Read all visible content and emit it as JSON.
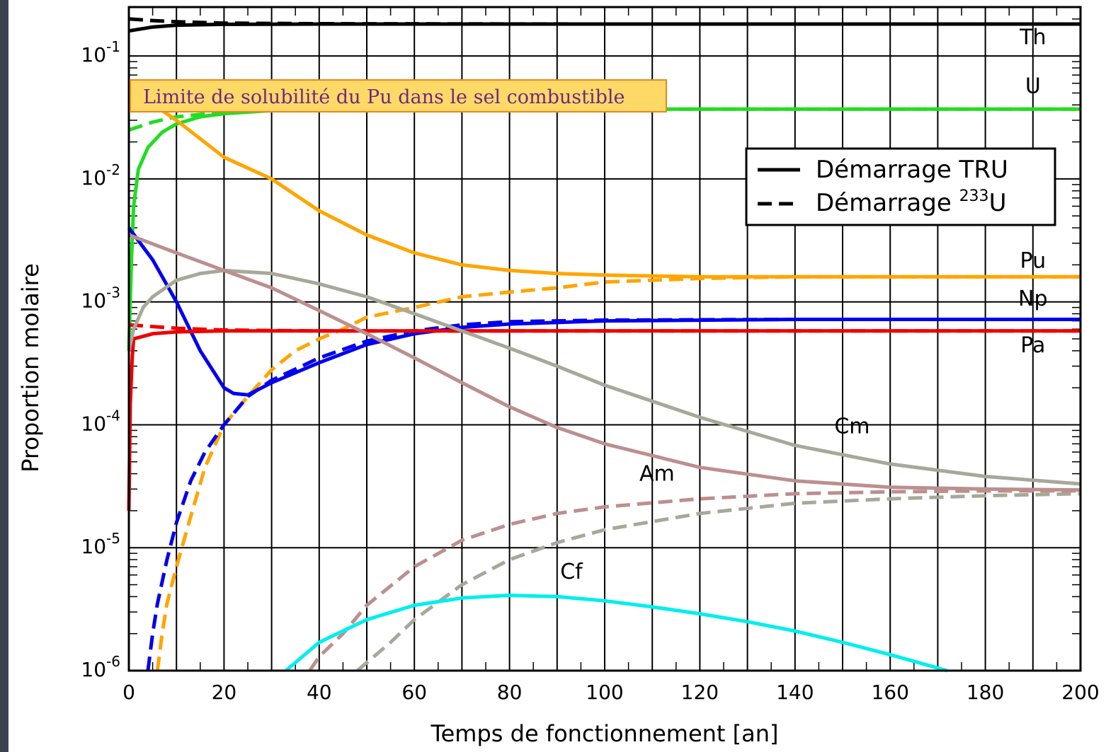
{
  "chart_data": {
    "type": "line",
    "title": "",
    "xlabel": "Temps de fonctionnement [an]",
    "ylabel": "Proportion molaire",
    "xlim": [
      0,
      200
    ],
    "ylim": [
      1e-06,
      0.25
    ],
    "yscale": "log",
    "grid": true,
    "x_ticks": [
      "0",
      "20",
      "40",
      "60",
      "80",
      "100",
      "120",
      "140",
      "160",
      "180",
      "200"
    ],
    "y_ticks": [
      {
        "base": "10",
        "exp": "-6",
        "value": 1e-06
      },
      {
        "base": "10",
        "exp": "-5",
        "value": 1e-05
      },
      {
        "base": "10",
        "exp": "-4",
        "value": 0.0001
      },
      {
        "base": "10",
        "exp": "-3",
        "value": 0.001
      },
      {
        "base": "10",
        "exp": "-2",
        "value": 0.01
      },
      {
        "base": "10",
        "exp": "-1",
        "value": 0.1
      }
    ],
    "legend": {
      "position": "top-right",
      "entries": [
        {
          "style": "solid",
          "text": "Démarrage TRU",
          "sup": "",
          "after": ""
        },
        {
          "style": "dashed",
          "text": "Démarrage ",
          "sup": "233",
          "after": "U"
        }
      ]
    },
    "annotation": "Limite de solubilité du Pu dans le sel combustible",
    "annotation_color": "#ffd966",
    "series": [
      {
        "element": "Th",
        "start": "TRU",
        "style": "solid",
        "color": "#000000",
        "points": [
          [
            0,
            0.16
          ],
          [
            5,
            0.172
          ],
          [
            10,
            0.178
          ],
          [
            20,
            0.181
          ],
          [
            40,
            0.182
          ],
          [
            100,
            0.182
          ],
          [
            200,
            0.182
          ]
        ]
      },
      {
        "element": "Th",
        "start": "233U",
        "style": "dashed",
        "color": "#000000",
        "points": [
          [
            0,
            0.2
          ],
          [
            5,
            0.194
          ],
          [
            10,
            0.19
          ],
          [
            20,
            0.185
          ],
          [
            40,
            0.183
          ],
          [
            100,
            0.182
          ],
          [
            200,
            0.182
          ]
        ]
      },
      {
        "element": "U",
        "start": "TRU",
        "style": "solid",
        "color": "#22dd22",
        "points": [
          [
            0,
            0.0004
          ],
          [
            0.5,
            0.002
          ],
          [
            1,
            0.006
          ],
          [
            2,
            0.012
          ],
          [
            4,
            0.018
          ],
          [
            7,
            0.024
          ],
          [
            10,
            0.028
          ],
          [
            15,
            0.032
          ],
          [
            20,
            0.034
          ],
          [
            30,
            0.036
          ],
          [
            40,
            0.037
          ],
          [
            60,
            0.037
          ],
          [
            200,
            0.037
          ]
        ]
      },
      {
        "element": "U",
        "start": "233U",
        "style": "dashed",
        "color": "#22dd22",
        "points": [
          [
            0,
            0.025
          ],
          [
            5,
            0.029
          ],
          [
            10,
            0.032
          ],
          [
            20,
            0.035
          ],
          [
            30,
            0.036
          ],
          [
            40,
            0.037
          ],
          [
            60,
            0.037
          ],
          [
            200,
            0.037
          ]
        ]
      },
      {
        "element": "Pu",
        "start": "TRU",
        "style": "solid",
        "color": "#ffa500",
        "points": [
          [
            0,
            0.055
          ],
          [
            10,
            0.03
          ],
          [
            20,
            0.015
          ],
          [
            30,
            0.01
          ],
          [
            40,
            0.0055
          ],
          [
            50,
            0.0035
          ],
          [
            60,
            0.0025
          ],
          [
            70,
            0.002
          ],
          [
            80,
            0.0018
          ],
          [
            90,
            0.0017
          ],
          [
            100,
            0.00165
          ],
          [
            120,
            0.0016
          ],
          [
            200,
            0.0016
          ]
        ]
      },
      {
        "element": "Pu",
        "start": "233U",
        "style": "dashed",
        "color": "#ffa500",
        "points": [
          [
            6,
            1e-06
          ],
          [
            7,
            2e-06
          ],
          [
            8,
            3.5e-06
          ],
          [
            10,
            7e-06
          ],
          [
            13,
            1.8e-05
          ],
          [
            16,
            4.5e-05
          ],
          [
            20,
            0.0001
          ],
          [
            25,
            0.00017
          ],
          [
            30,
            0.00028
          ],
          [
            35,
            0.0004
          ],
          [
            40,
            0.0005
          ],
          [
            45,
            0.0006
          ],
          [
            50,
            0.00075
          ],
          [
            60,
            0.0009
          ],
          [
            70,
            0.0011
          ],
          [
            80,
            0.0012
          ],
          [
            90,
            0.0013
          ],
          [
            100,
            0.00145
          ],
          [
            120,
            0.00155
          ],
          [
            140,
            0.0016
          ],
          [
            200,
            0.0016
          ]
        ]
      },
      {
        "element": "Np",
        "start": "TRU",
        "style": "solid",
        "color": "#0000ee",
        "points": [
          [
            0,
            0.004
          ],
          [
            5,
            0.0022
          ],
          [
            10,
            0.001
          ],
          [
            15,
            0.0004
          ],
          [
            20,
            0.0002
          ],
          [
            22,
            0.00018
          ],
          [
            25,
            0.000175
          ],
          [
            30,
            0.00022
          ],
          [
            40,
            0.00032
          ],
          [
            50,
            0.00045
          ],
          [
            60,
            0.00055
          ],
          [
            70,
            0.00062
          ],
          [
            80,
            0.00066
          ],
          [
            100,
            0.0007
          ],
          [
            140,
            0.00072
          ],
          [
            200,
            0.00072
          ]
        ]
      },
      {
        "element": "Np",
        "start": "233U",
        "style": "dashed",
        "color": "#0000ee",
        "points": [
          [
            4,
            1e-06
          ],
          [
            5,
            2e-06
          ],
          [
            6,
            3.5e-06
          ],
          [
            8,
            8e-06
          ],
          [
            10,
            1.6e-05
          ],
          [
            13,
            3.5e-05
          ],
          [
            16,
            6e-05
          ],
          [
            20,
            0.0001
          ],
          [
            25,
            0.00017
          ],
          [
            30,
            0.00023
          ],
          [
            40,
            0.00035
          ],
          [
            50,
            0.00048
          ],
          [
            60,
            0.00058
          ],
          [
            70,
            0.00065
          ],
          [
            80,
            0.00069
          ],
          [
            100,
            0.00071
          ],
          [
            140,
            0.00072
          ],
          [
            200,
            0.00072
          ]
        ]
      },
      {
        "element": "Pa",
        "start": "TRU",
        "style": "solid",
        "color": "#ee0000",
        "points": [
          [
            0,
            2e-05
          ],
          [
            0.3,
            0.00015
          ],
          [
            0.7,
            0.00035
          ],
          [
            1,
            0.0005
          ],
          [
            5,
            0.00055
          ],
          [
            10,
            0.00057
          ],
          [
            20,
            0.00058
          ],
          [
            200,
            0.00058
          ]
        ]
      },
      {
        "element": "Pa",
        "start": "233U",
        "style": "dashed",
        "color": "#ee0000",
        "points": [
          [
            0,
            0.00065
          ],
          [
            10,
            0.00061
          ],
          [
            20,
            0.00059
          ],
          [
            40,
            0.00058
          ],
          [
            200,
            0.00058
          ]
        ]
      },
      {
        "element": "Cm",
        "start": "TRU",
        "style": "solid",
        "color": "#a8a89a",
        "points": [
          [
            0,
            0.0004
          ],
          [
            1,
            0.0006
          ],
          [
            3,
            0.0009
          ],
          [
            5,
            0.0011
          ],
          [
            10,
            0.0015
          ],
          [
            15,
            0.0017
          ],
          [
            20,
            0.0018
          ],
          [
            30,
            0.0017
          ],
          [
            40,
            0.0014
          ],
          [
            50,
            0.0011
          ],
          [
            60,
            0.0008
          ],
          [
            70,
            0.00058
          ],
          [
            80,
            0.00042
          ],
          [
            90,
            0.0003
          ],
          [
            100,
            0.00021
          ],
          [
            120,
            0.000115
          ],
          [
            140,
            6.8e-05
          ],
          [
            160,
            4.8e-05
          ],
          [
            180,
            3.8e-05
          ],
          [
            200,
            3.3e-05
          ]
        ]
      },
      {
        "element": "Cm",
        "start": "233U",
        "style": "dashed",
        "color": "#a8a89a",
        "points": [
          [
            48,
            1e-06
          ],
          [
            55,
            1.7e-06
          ],
          [
            60,
            2.6e-06
          ],
          [
            70,
            5e-06
          ],
          [
            80,
            8e-06
          ],
          [
            90,
            1.1e-05
          ],
          [
            100,
            1.4e-05
          ],
          [
            120,
            1.9e-05
          ],
          [
            140,
            2.3e-05
          ],
          [
            160,
            2.5e-05
          ],
          [
            180,
            2.65e-05
          ],
          [
            200,
            2.75e-05
          ]
        ]
      },
      {
        "element": "Am",
        "start": "TRU",
        "style": "solid",
        "color": "#bc8f8f",
        "points": [
          [
            0,
            0.0035
          ],
          [
            10,
            0.0025
          ],
          [
            20,
            0.0018
          ],
          [
            30,
            0.0013
          ],
          [
            40,
            0.00085
          ],
          [
            50,
            0.00055
          ],
          [
            60,
            0.00035
          ],
          [
            70,
            0.00022
          ],
          [
            80,
            0.00014
          ],
          [
            90,
            9.5e-05
          ],
          [
            100,
            7e-05
          ],
          [
            120,
            4.5e-05
          ],
          [
            140,
            3.5e-05
          ],
          [
            160,
            3.1e-05
          ],
          [
            180,
            3e-05
          ],
          [
            200,
            2.95e-05
          ]
        ]
      },
      {
        "element": "Am",
        "start": "233U",
        "style": "dashed",
        "color": "#bc8f8f",
        "points": [
          [
            38,
            1e-06
          ],
          [
            40,
            1.3e-06
          ],
          [
            45,
            2e-06
          ],
          [
            50,
            3.4e-06
          ],
          [
            60,
            7e-06
          ],
          [
            70,
            1.15e-05
          ],
          [
            80,
            1.55e-05
          ],
          [
            90,
            1.9e-05
          ],
          [
            100,
            2.15e-05
          ],
          [
            120,
            2.5e-05
          ],
          [
            140,
            2.75e-05
          ],
          [
            160,
            2.85e-05
          ],
          [
            180,
            2.9e-05
          ],
          [
            200,
            2.9e-05
          ]
        ]
      },
      {
        "element": "Cf",
        "start": "TRU",
        "style": "solid",
        "color": "#00eeee",
        "points": [
          [
            33,
            1e-06
          ],
          [
            40,
            1.7e-06
          ],
          [
            50,
            2.6e-06
          ],
          [
            60,
            3.4e-06
          ],
          [
            70,
            3.9e-06
          ],
          [
            80,
            4.1e-06
          ],
          [
            90,
            4e-06
          ],
          [
            100,
            3.7e-06
          ],
          [
            110,
            3.3e-06
          ],
          [
            120,
            2.9e-06
          ],
          [
            130,
            2.5e-06
          ],
          [
            140,
            2.1e-06
          ],
          [
            150,
            1.7e-06
          ],
          [
            160,
            1.35e-06
          ],
          [
            172,
            1e-06
          ]
        ]
      }
    ],
    "curve_labels": [
      {
        "text": "Th",
        "x": 190,
        "y": 0.125
      },
      {
        "text": "U",
        "x": 190,
        "y": 0.05
      },
      {
        "text": "Pu",
        "x": 190,
        "y": 0.0019
      },
      {
        "text": "Np",
        "x": 190,
        "y": 0.00093
      },
      {
        "text": "Pa",
        "x": 190,
        "y": 0.00039
      },
      {
        "text": "Cm",
        "x": 152,
        "y": 8.5e-05
      },
      {
        "text": "Am",
        "x": 111,
        "y": 3.5e-05
      },
      {
        "text": "Cf",
        "x": 93,
        "y": 5.6e-06
      }
    ]
  }
}
